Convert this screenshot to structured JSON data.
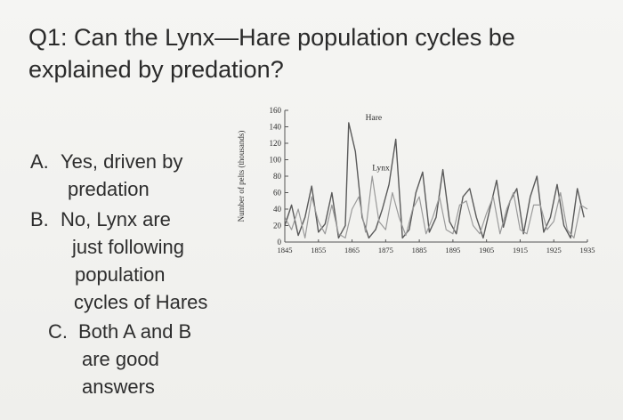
{
  "question": {
    "line1": "Q1: Can the Lynx—Hare population cycles be",
    "line2": "explained by predation?"
  },
  "answers": [
    {
      "letter": "A.",
      "lines": [
        "Yes, driven by",
        "predation"
      ]
    },
    {
      "letter": "B.",
      "lines": [
        "No, Lynx are",
        "just following",
        "population",
        "cycles of Hares"
      ]
    },
    {
      "letter": "C.",
      "lines": [
        "Both A and B",
        "are good",
        "answers"
      ]
    }
  ],
  "colors": {
    "hare": "#5a5a5a",
    "lynx": "#9a9a9a",
    "axis": "#555555",
    "text": "#2b2b2b"
  },
  "chart_data": {
    "type": "line",
    "title": "",
    "xlabel": "",
    "ylabel": "Number of pelts (thousands)",
    "xlim": [
      1845,
      1935
    ],
    "ylim": [
      0,
      160
    ],
    "x_ticks": [
      "1845",
      "1855",
      "1865",
      "1875",
      "1885",
      "1895",
      "1905",
      "1915",
      "1925",
      "1935"
    ],
    "y_ticks": [
      "0",
      "20",
      "40",
      "60",
      "80",
      "100",
      "120",
      "140",
      "160"
    ],
    "grid": false,
    "annotations": [
      {
        "text": "Hare",
        "x": 1869,
        "y": 148
      },
      {
        "text": "Lynx",
        "x": 1871,
        "y": 87
      }
    ],
    "series": [
      {
        "name": "Hare",
        "x": [
          1845,
          1847,
          1849,
          1851,
          1853,
          1855,
          1857,
          1859,
          1861,
          1863,
          1864,
          1866,
          1868,
          1870,
          1872,
          1874,
          1876,
          1878,
          1880,
          1882,
          1884,
          1886,
          1888,
          1890,
          1892,
          1894,
          1896,
          1898,
          1900,
          1902,
          1904,
          1906,
          1908,
          1910,
          1912,
          1914,
          1916,
          1918,
          1920,
          1922,
          1924,
          1926,
          1928,
          1930,
          1932,
          1934
        ],
        "values": [
          20,
          45,
          8,
          30,
          68,
          12,
          22,
          60,
          5,
          20,
          145,
          110,
          30,
          5,
          15,
          40,
          70,
          125,
          5,
          15,
          60,
          85,
          12,
          30,
          88,
          25,
          10,
          55,
          65,
          30,
          5,
          40,
          75,
          18,
          50,
          65,
          10,
          55,
          80,
          12,
          30,
          70,
          20,
          5,
          65,
          30
        ]
      },
      {
        "name": "Lynx",
        "x": [
          1845,
          1847,
          1849,
          1851,
          1853,
          1855,
          1857,
          1859,
          1861,
          1863,
          1865,
          1867,
          1869,
          1871,
          1873,
          1875,
          1877,
          1879,
          1881,
          1883,
          1885,
          1887,
          1889,
          1891,
          1893,
          1895,
          1897,
          1899,
          1901,
          1903,
          1905,
          1907,
          1909,
          1911,
          1913,
          1915,
          1917,
          1919,
          1921,
          1923,
          1925,
          1927,
          1929,
          1931,
          1933,
          1935
        ],
        "values": [
          30,
          15,
          40,
          5,
          55,
          25,
          10,
          45,
          10,
          5,
          40,
          55,
          12,
          80,
          25,
          15,
          60,
          30,
          8,
          40,
          55,
          10,
          30,
          55,
          15,
          10,
          45,
          50,
          20,
          10,
          35,
          55,
          10,
          40,
          60,
          15,
          10,
          45,
          45,
          15,
          25,
          60,
          15,
          5,
          45,
          40
        ]
      }
    ]
  }
}
